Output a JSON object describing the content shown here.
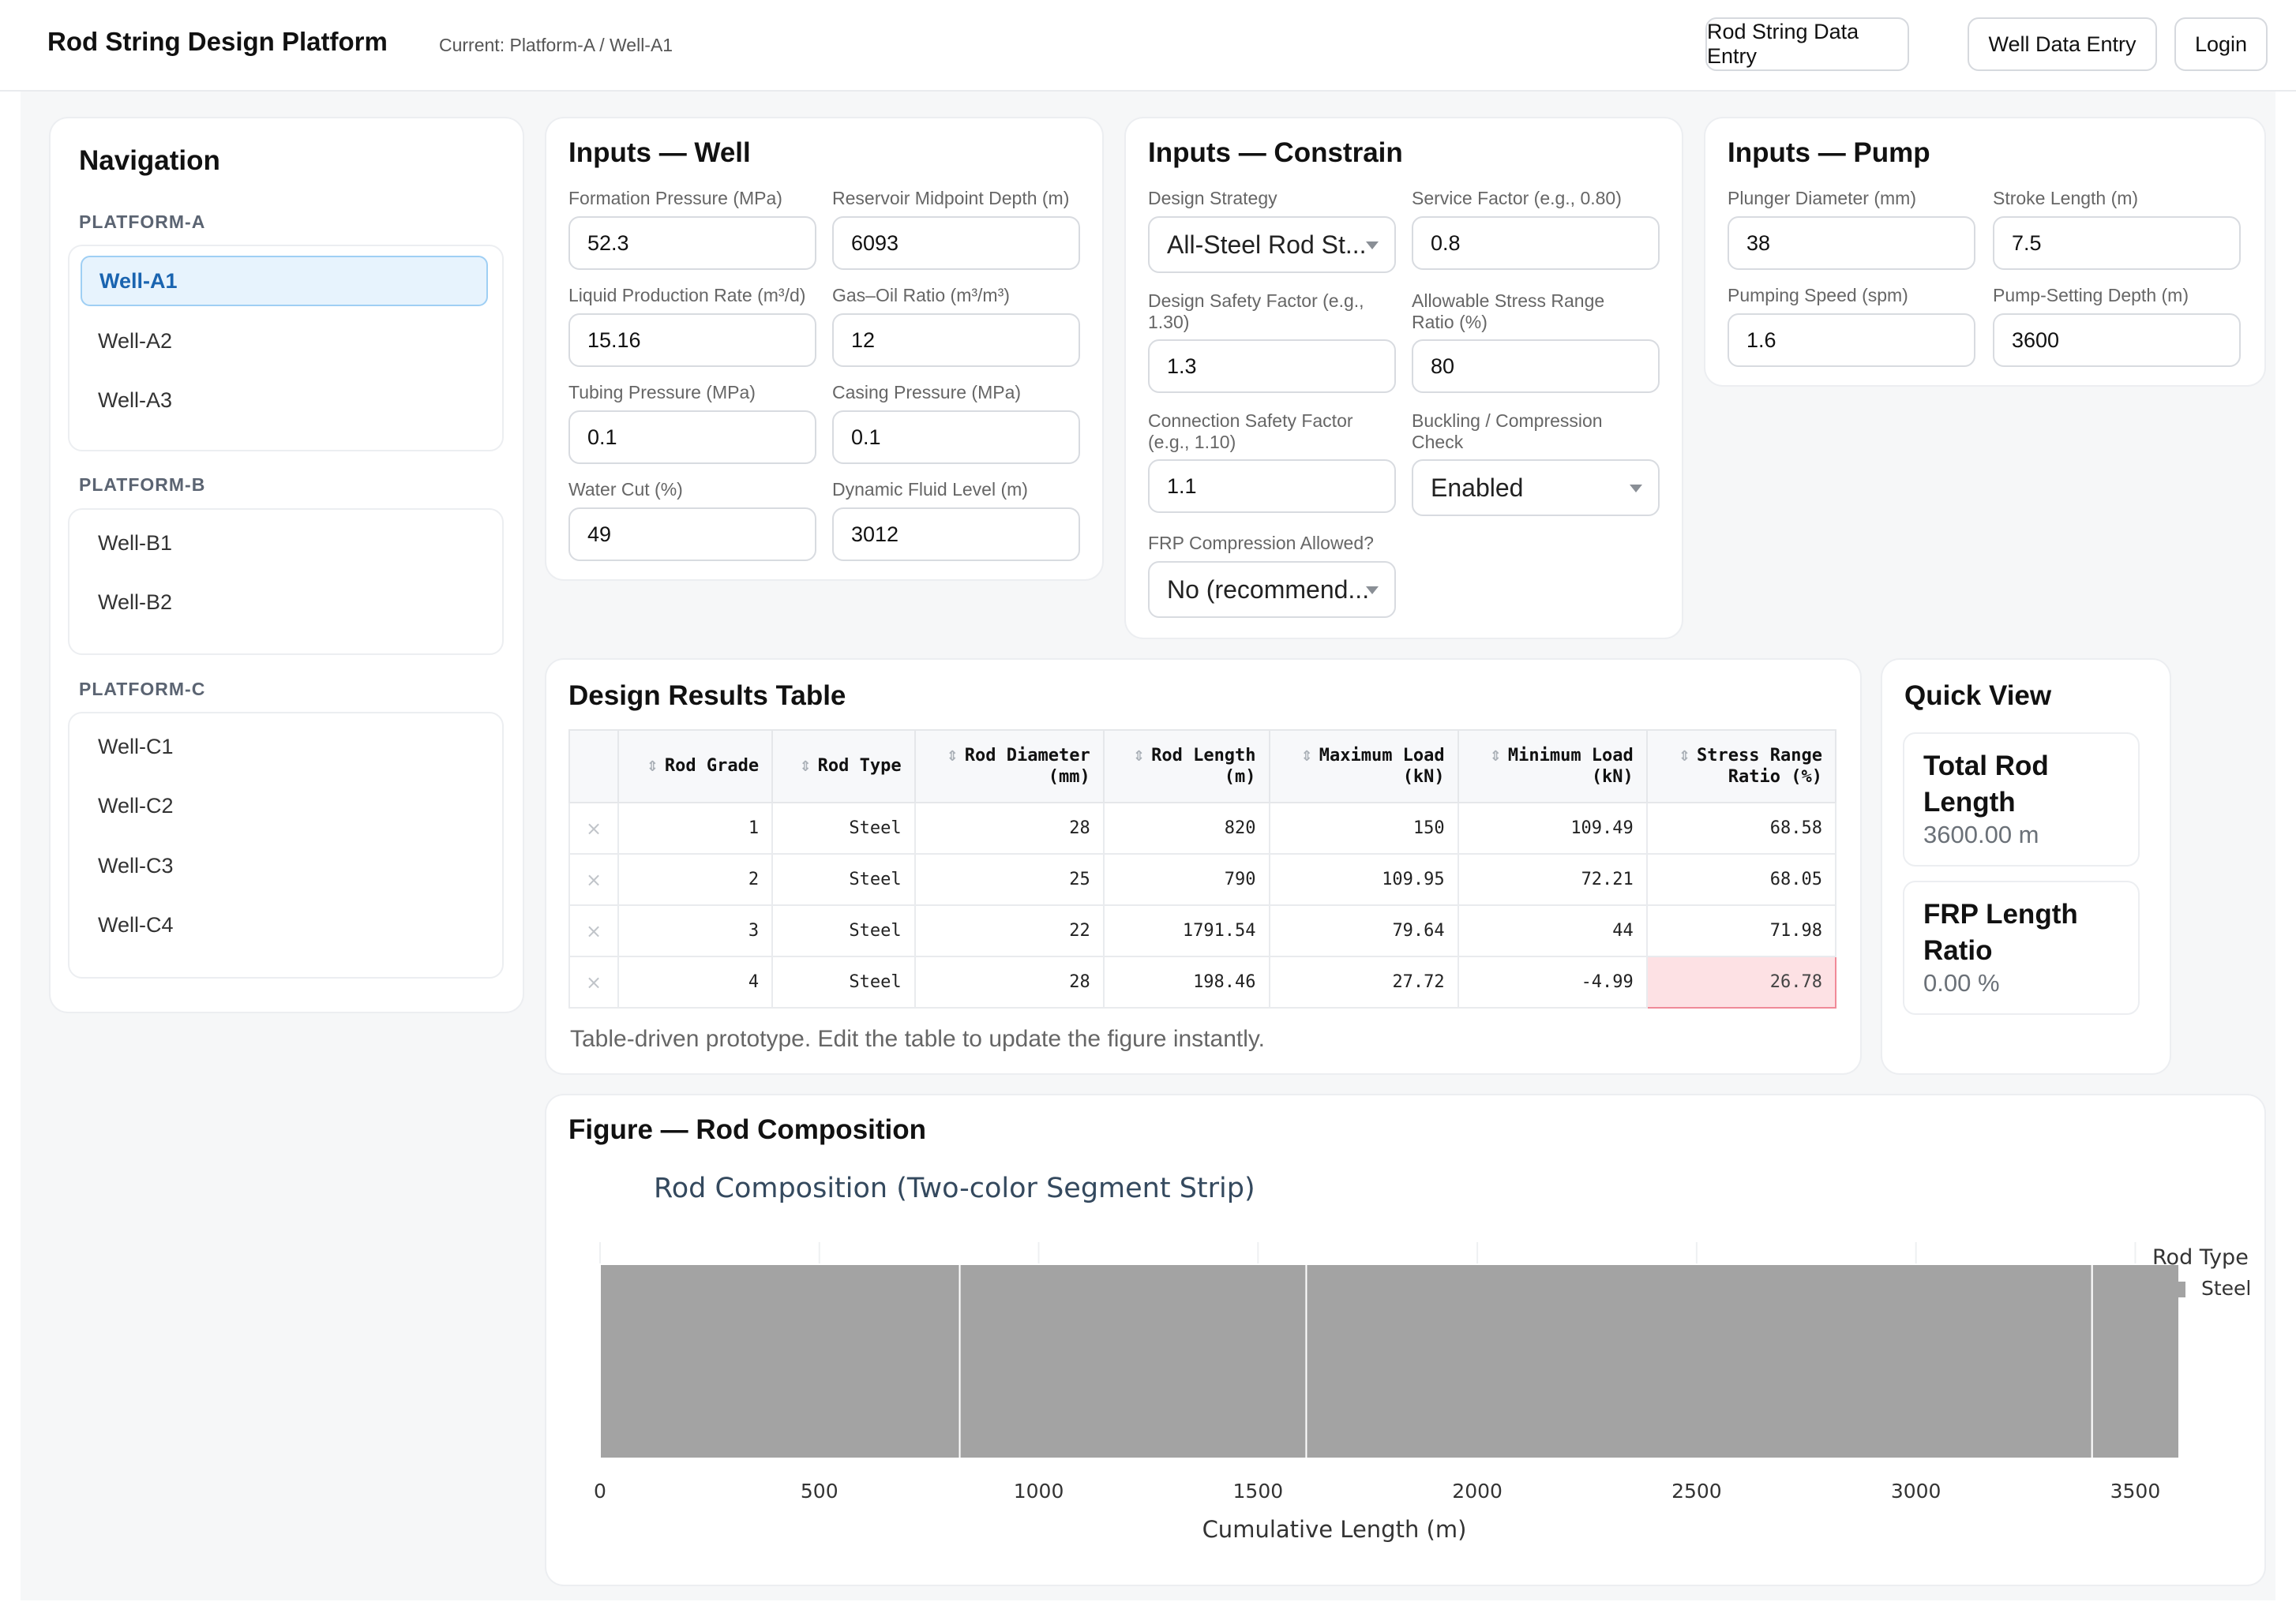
{
  "header": {
    "app_title": "Rod String Design Platform",
    "current": "Current: Platform-A / Well-A1",
    "buttons": [
      "Rod String Data Entry",
      "Well Data Entry",
      "Login"
    ]
  },
  "navigation": {
    "title": "Navigation",
    "groups": [
      {
        "label": "PLATFORM-A",
        "items": [
          "Well-A1",
          "Well-A2",
          "Well-A3"
        ],
        "active": "Well-A1"
      },
      {
        "label": "PLATFORM-B",
        "items": [
          "Well-B1",
          "Well-B2"
        ]
      },
      {
        "label": "PLATFORM-C",
        "items": [
          "Well-C1",
          "Well-C2",
          "Well-C3",
          "Well-C4"
        ]
      }
    ]
  },
  "inputs_well": {
    "title": "Inputs — Well",
    "fields": [
      {
        "label": "Formation Pressure (MPa)",
        "value": "52.3"
      },
      {
        "label": "Reservoir Midpoint Depth (m)",
        "value": "6093"
      },
      {
        "label": "Liquid Production Rate (m³/d)",
        "value": "15.16"
      },
      {
        "label": "Gas–Oil Ratio (m³/m³)",
        "value": "12"
      },
      {
        "label": "Tubing Pressure (MPa)",
        "value": "0.1"
      },
      {
        "label": "Casing Pressure (MPa)",
        "value": "0.1"
      },
      {
        "label": "Water Cut (%)",
        "value": "49"
      },
      {
        "label": "Dynamic Fluid Level (m)",
        "value": "3012"
      }
    ]
  },
  "inputs_constrain": {
    "title": "Inputs — Constrain",
    "design_strategy": {
      "label": "Design Strategy",
      "value": "All-Steel Rod St..."
    },
    "service_factor": {
      "label": "Service Factor (e.g., 0.80)",
      "value": "0.8"
    },
    "design_safety_factor": {
      "label": "Design Safety Factor (e.g., 1.30)",
      "value": "1.3"
    },
    "allowable_stress": {
      "label": "Allowable Stress Range Ratio (%)",
      "value": "80"
    },
    "connection_safety_factor": {
      "label": "Connection Safety Factor (e.g., 1.10)",
      "value": "1.1"
    },
    "buckling": {
      "label": "Buckling / Compression Check",
      "value": "Enabled"
    },
    "frp_compression": {
      "label": "FRP Compression Allowed?",
      "value": "No (recommend..."
    }
  },
  "inputs_pump": {
    "title": "Inputs — Pump",
    "fields": [
      {
        "label": "Plunger Diameter (mm)",
        "value": "38"
      },
      {
        "label": "Stroke Length (m)",
        "value": "7.5"
      },
      {
        "label": "Pumping Speed (spm)",
        "value": "1.6"
      },
      {
        "label": "Pump-Setting Depth (m)",
        "value": "3600"
      }
    ]
  },
  "results_table": {
    "title": "Design Results Table",
    "headers": [
      [
        "Rod Grade"
      ],
      [
        "Rod Type"
      ],
      [
        "Rod Diameter",
        "(mm)"
      ],
      [
        "Rod Length",
        "(m)"
      ],
      [
        "Maximum Load",
        "(kN)"
      ],
      [
        "Minimum Load",
        "(kN)"
      ],
      [
        "Stress Range",
        "Ratio (%)"
      ]
    ],
    "rows": [
      [
        "1",
        "Steel",
        "28",
        "820",
        "150",
        "109.49",
        "68.58"
      ],
      [
        "2",
        "Steel",
        "25",
        "790",
        "109.95",
        "72.21",
        "68.05"
      ],
      [
        "3",
        "Steel",
        "22",
        "1791.54",
        "79.64",
        "44",
        "71.98"
      ],
      [
        "4",
        "Steel",
        "28",
        "198.46",
        "27.72",
        "-4.99",
        "26.78"
      ]
    ],
    "remove_icon": "×",
    "sort_icon": "⇕",
    "note": "Table-driven prototype. Edit the table to update the figure instantly."
  },
  "quick_view": {
    "title": "Quick View",
    "total_rod_length": {
      "label": "Total Rod Length",
      "value": "3600.00 m"
    },
    "frp_length_ratio": {
      "label": "FRP Length Ratio",
      "value": "0.00 %"
    }
  },
  "figure": {
    "title": "Figure — Rod Composition",
    "chart_data": {
      "type": "bar",
      "orientation": "horizontal-stacked",
      "title": "Rod Composition (Two-color Segment Strip)",
      "xlabel": "Cumulative Length (m)",
      "ylabel": "",
      "xlim": [
        0,
        3600
      ],
      "x_ticks": [
        "0",
        "500",
        "1000",
        "1500",
        "2000",
        "2500",
        "3000",
        "3500"
      ],
      "segments": [
        {
          "type": "Steel",
          "start": 0,
          "length": 820
        },
        {
          "type": "Steel",
          "start": 820,
          "length": 790
        },
        {
          "type": "Steel",
          "start": 1610,
          "length": 1791.54
        },
        {
          "type": "Steel",
          "start": 3401.54,
          "length": 198.46
        }
      ],
      "legend_title": "Rod Type",
      "legend": [
        {
          "name": "Steel",
          "color": "#a3a3a3"
        }
      ],
      "legend_position": "right",
      "grid": true,
      "colors": {
        "steel": "#a3a3a3"
      }
    }
  }
}
